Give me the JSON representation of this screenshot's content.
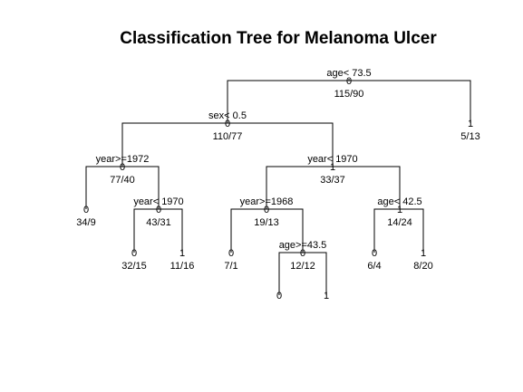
{
  "title": "Classification Tree for Melanoma Ulcer",
  "nodes": [
    {
      "id": "root",
      "class": "0",
      "count": "115/90",
      "split": "age< 73.5"
    },
    {
      "id": "n1",
      "class": "0",
      "count": "110/77",
      "split": "sex< 0.5"
    },
    {
      "id": "n2",
      "class": "1",
      "count": "5/13",
      "split": ""
    },
    {
      "id": "n3",
      "class": "0",
      "count": "77/40",
      "split": "year>=1972"
    },
    {
      "id": "n4",
      "class": "1",
      "count": "33/37",
      "split": "year< 1970"
    },
    {
      "id": "n5",
      "class": "0",
      "count": "34/9",
      "split": ""
    },
    {
      "id": "n6",
      "class": "0",
      "count": "43/31",
      "split": "year< 1970"
    },
    {
      "id": "n7",
      "class": "0",
      "count": "32/15",
      "split": ""
    },
    {
      "id": "n8",
      "class": "1",
      "count": "11/16",
      "split": ""
    },
    {
      "id": "n9",
      "class": "0",
      "count": "19/13",
      "split": "year>=1968"
    },
    {
      "id": "n10",
      "class": "1",
      "count": "14/24",
      "split": "age< 42.5"
    },
    {
      "id": "n11",
      "class": "0",
      "count": "7/1",
      "split": ""
    },
    {
      "id": "n12",
      "class": "0",
      "count": "12/12",
      "split": "age>=43.5"
    },
    {
      "id": "n13",
      "class": "0",
      "count": "",
      "split": ""
    },
    {
      "id": "n14",
      "class": "1",
      "count": "",
      "split": ""
    },
    {
      "id": "n15",
      "class": "0",
      "count": "6/4",
      "split": ""
    },
    {
      "id": "n16",
      "class": "1",
      "count": "8/20",
      "split": ""
    }
  ],
  "edges": [
    [
      "root",
      "n1"
    ],
    [
      "root",
      "n2"
    ],
    [
      "n1",
      "n3"
    ],
    [
      "n1",
      "n4"
    ],
    [
      "n3",
      "n5"
    ],
    [
      "n3",
      "n6"
    ],
    [
      "n6",
      "n7"
    ],
    [
      "n6",
      "n8"
    ],
    [
      "n4",
      "n9"
    ],
    [
      "n4",
      "n10"
    ],
    [
      "n9",
      "n11"
    ],
    [
      "n9",
      "n12"
    ],
    [
      "n12",
      "n13"
    ],
    [
      "n12",
      "n14"
    ],
    [
      "n10",
      "n15"
    ],
    [
      "n10",
      "n16"
    ]
  ]
}
